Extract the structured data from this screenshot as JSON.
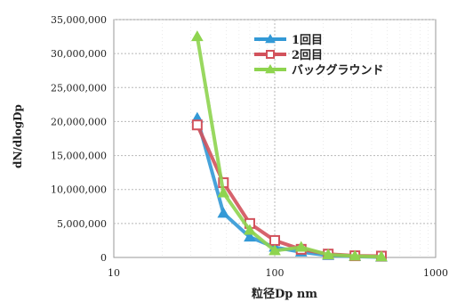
{
  "chart_data": {
    "type": "line",
    "title": "",
    "xlabel": "粒径Dp nm",
    "ylabel": "dN/dlogDp",
    "x_scale": "log",
    "xlim": [
      10,
      1000
    ],
    "ylim": [
      0,
      35000000
    ],
    "x_ticks": [
      10,
      100,
      1000
    ],
    "x_tick_labels": [
      "10",
      "100",
      "1000"
    ],
    "y_ticks": [
      0,
      5000000,
      10000000,
      15000000,
      20000000,
      25000000,
      30000000,
      35000000
    ],
    "y_tick_labels": [
      "0",
      "5,000,000",
      "10,000,000",
      "15,000,000",
      "20,000,000",
      "25,000,000",
      "30,000,000",
      "35,000,000"
    ],
    "grid": true,
    "legend_position": "top-right",
    "series": [
      {
        "name": "1回目",
        "color": "#3399d6",
        "marker": "triangle",
        "x": [
          33,
          48,
          70,
          100,
          146,
          215,
          315,
          460
        ],
        "y": [
          20500000,
          6500000,
          3000000,
          1500000,
          800000,
          300000,
          150000,
          50000
        ]
      },
      {
        "name": "2回目",
        "color": "#d2525c",
        "marker": "square",
        "x": [
          33,
          48,
          70,
          100,
          146,
          215,
          315,
          460
        ],
        "y": [
          19500000,
          11000000,
          5000000,
          2500000,
          1200000,
          500000,
          250000,
          200000
        ]
      },
      {
        "name": "バックグラウンド",
        "color": "#8ed44f",
        "marker": "triangle",
        "x": [
          33,
          48,
          70,
          100,
          146,
          215,
          315,
          460
        ],
        "y": [
          32500000,
          9500000,
          4000000,
          1000000,
          1500000,
          400000,
          200000,
          100000
        ]
      }
    ]
  }
}
